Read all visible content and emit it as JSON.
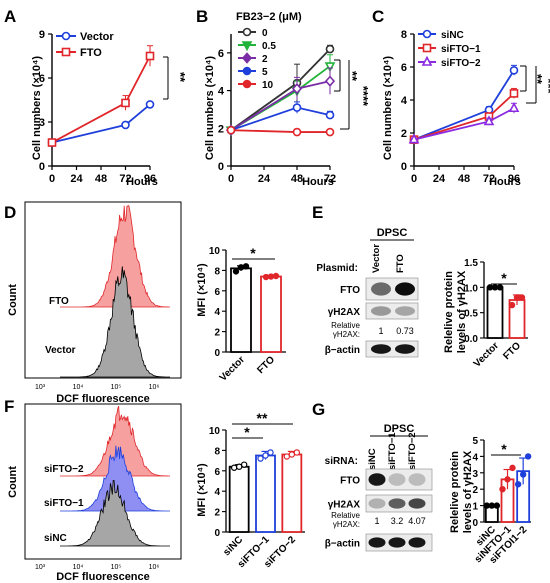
{
  "chart_data": [
    {
      "panel": "A",
      "type": "line",
      "title": "",
      "xlabel": "Hours",
      "ylabel": "Cell numbers (×10⁴)",
      "xticks": [
        "0",
        "24",
        "48",
        "72",
        "96"
      ],
      "yticks": [
        "0",
        "3",
        "6",
        "9"
      ],
      "xlim": [
        0,
        96
      ],
      "ylim": [
        0,
        9
      ],
      "series": [
        {
          "name": "Vector",
          "color": "#1f3fdb",
          "marker": "circle",
          "x": [
            0,
            72,
            96
          ],
          "y": [
            1.6,
            2.8,
            4.2
          ],
          "err": [
            0.1,
            0.15,
            0.15
          ]
        },
        {
          "name": "FTO",
          "color": "#e0262a",
          "marker": "square",
          "x": [
            0,
            72,
            96
          ],
          "y": [
            1.6,
            4.3,
            7.5
          ],
          "err": [
            0.1,
            0.5,
            0.7
          ]
        }
      ],
      "significance": [
        "**"
      ]
    },
    {
      "panel": "B",
      "type": "line",
      "title": "",
      "legend_title": "FB23−2 (μM)",
      "xlabel": "Hours",
      "ylabel": "Cell numbers (×10⁴)",
      "xticks": [
        "0",
        "24",
        "48",
        "72"
      ],
      "yticks": [
        "0",
        "2",
        "4",
        "6"
      ],
      "xlim": [
        0,
        72
      ],
      "ylim": [
        0,
        7
      ],
      "series": [
        {
          "name": "0",
          "color": "#333333",
          "marker": "circle",
          "x": [
            0,
            48,
            72
          ],
          "y": [
            1.9,
            4.4,
            6.2
          ],
          "err": [
            0.1,
            1.0,
            0.2
          ]
        },
        {
          "name": "0.5",
          "color": "#22b33a",
          "marker": "triangle-down",
          "x": [
            0,
            48,
            72
          ],
          "y": [
            1.9,
            4.0,
            5.3
          ],
          "err": [
            0.1,
            0.5,
            0.6
          ]
        },
        {
          "name": "2",
          "color": "#7a2ea6",
          "marker": "diamond",
          "x": [
            0,
            48,
            72
          ],
          "y": [
            1.9,
            4.1,
            4.5
          ],
          "err": [
            0.1,
            0.6,
            0.7
          ]
        },
        {
          "name": "5",
          "color": "#1f3fdb",
          "marker": "circle",
          "x": [
            0,
            48,
            72
          ],
          "y": [
            1.9,
            3.1,
            2.7
          ],
          "err": [
            0.1,
            0.3,
            0.2
          ]
        },
        {
          "name": "10",
          "color": "#e0262a",
          "marker": "circle",
          "x": [
            0,
            48,
            72
          ],
          "y": [
            1.9,
            1.8,
            1.8
          ],
          "err": [
            0.1,
            0.15,
            0.1
          ]
        }
      ],
      "significance": [
        "**",
        "****"
      ]
    },
    {
      "panel": "C",
      "type": "line",
      "title": "",
      "xlabel": "Hours",
      "ylabel": "Cell numbers (×10⁴)",
      "xticks": [
        "0",
        "24",
        "48",
        "72",
        "96"
      ],
      "yticks": [
        "0",
        "2",
        "4",
        "6",
        "8"
      ],
      "xlim": [
        0,
        96
      ],
      "ylim": [
        0,
        8
      ],
      "series": [
        {
          "name": "siNC",
          "color": "#1f3fdb",
          "marker": "circle",
          "x": [
            0,
            72,
            96
          ],
          "y": [
            1.6,
            3.4,
            5.8
          ],
          "err": [
            0.1,
            0.2,
            0.3
          ]
        },
        {
          "name": "siFTO−1",
          "color": "#e0262a",
          "marker": "square",
          "x": [
            0,
            72,
            96
          ],
          "y": [
            1.6,
            3.0,
            4.4
          ],
          "err": [
            0.1,
            0.2,
            0.3
          ]
        },
        {
          "name": "siFTO−2",
          "color": "#8a2be2",
          "marker": "triangle",
          "x": [
            0,
            72,
            96
          ],
          "y": [
            1.6,
            2.7,
            3.5
          ],
          "err": [
            0.1,
            0.2,
            0.3
          ]
        }
      ],
      "significance": [
        "**",
        "***"
      ]
    },
    {
      "panel": "D-histogram",
      "type": "area",
      "title": "",
      "xlabel": "DCF fluorescence",
      "ylabel": "Count",
      "xticks": [
        "10³",
        "10⁴",
        "10⁵",
        "10⁶"
      ],
      "series": [
        {
          "name": "FTO",
          "color": "#f28585"
        },
        {
          "name": "Vector",
          "color": "#999999"
        }
      ]
    },
    {
      "panel": "D-bar",
      "type": "bar",
      "title": "",
      "categories": [
        "Vector",
        "FTO"
      ],
      "colors": [
        "#000000",
        "#e0262a"
      ],
      "values": [
        8.2,
        7.4
      ],
      "err": [
        0.25,
        0.05
      ],
      "points": [
        [
          7.9,
          8.3,
          8.4
        ],
        [
          7.35,
          7.4,
          7.45
        ]
      ],
      "ylabel": "MFI (×10⁴)",
      "yticks": [
        "0",
        "2",
        "4",
        "6",
        "8",
        "10"
      ],
      "ylim": [
        0,
        10
      ],
      "significance": [
        "*"
      ]
    },
    {
      "panel": "E-bar",
      "type": "bar",
      "title": "",
      "categories": [
        "Vector",
        "FTO"
      ],
      "colors": [
        "#000000",
        "#e0262a"
      ],
      "values": [
        1.0,
        0.75
      ],
      "err": [
        0.0,
        0.1
      ],
      "points": [
        [
          1.0,
          1.0,
          1.0
        ],
        [
          0.65,
          0.8,
          0.8
        ]
      ],
      "ylabel": "Relelive protein levels of γH2AX",
      "yticks": [
        "0.0",
        "0.5",
        "1.0",
        "1.5"
      ],
      "ylim": [
        0,
        1.5
      ],
      "significance": [
        "*"
      ]
    },
    {
      "panel": "F-histogram",
      "type": "area",
      "title": "",
      "xlabel": "DCF fluorescence",
      "ylabel": "Count",
      "xticks": [
        "10³",
        "10⁴",
        "10⁵",
        "10⁶"
      ],
      "series": [
        {
          "name": "siFTO−2",
          "color": "#f28585"
        },
        {
          "name": "siFTO−1",
          "color": "#6d6dee"
        },
        {
          "name": "siNC",
          "color": "#999999"
        }
      ]
    },
    {
      "panel": "F-bar",
      "type": "bar",
      "title": "",
      "categories": [
        "siNC",
        "siFTO−1",
        "siFTO−2"
      ],
      "colors": [
        "#000000",
        "#1f3fdb",
        "#e0262a"
      ],
      "values": [
        6.4,
        7.5,
        7.6
      ],
      "err": [
        0.2,
        0.4,
        0.3
      ],
      "points": [
        [
          6.3,
          6.4,
          6.6
        ],
        [
          7.2,
          7.5,
          7.8
        ],
        [
          7.4,
          7.6,
          7.8
        ]
      ],
      "ylabel": "MFI (×10⁴)",
      "yticks": [
        "0",
        "2",
        "4",
        "6",
        "8",
        "10"
      ],
      "ylim": [
        0,
        10
      ],
      "significance": [
        "*",
        "**"
      ]
    },
    {
      "panel": "G-bar",
      "type": "bar",
      "title": "",
      "categories": [
        "siNC",
        "siNFTO−1",
        "siFTOI1−2"
      ],
      "colors": [
        "#000000",
        "#e0262a",
        "#1f3fdb"
      ],
      "values": [
        1.0,
        2.6,
        3.1
      ],
      "err": [
        0.0,
        0.6,
        0.8
      ],
      "points": [
        [
          1.0,
          1.0,
          1.0
        ],
        [
          2.0,
          2.6,
          3.3
        ],
        [
          2.3,
          2.9,
          4.0
        ]
      ],
      "ylabel": "Relelive protein levels of γH2AX",
      "yticks": [
        "0",
        "1",
        "2",
        "3",
        "4",
        "5"
      ],
      "ylim": [
        0,
        5
      ],
      "significance": [
        "*"
      ]
    }
  ],
  "panel_letters": [
    "A",
    "B",
    "C",
    "D",
    "E",
    "F",
    "G"
  ],
  "blots": {
    "E": {
      "header": "DPSC",
      "row_label": "Plasmid:",
      "lanes": [
        "Vector",
        "FTO"
      ],
      "rows": [
        "FTO",
        "γH2AX",
        "β−actin"
      ],
      "relative_label_1": "Relative",
      "relative_label_2": "γH2AX:",
      "relative_values": [
        "1",
        "0.73"
      ]
    },
    "G": {
      "header": "DPSC",
      "row_label": "siRNA:",
      "lanes": [
        "siNC",
        "siFTO−1",
        "siFTO−2"
      ],
      "rows": [
        "FTO",
        "γH2AX",
        "β−actin"
      ],
      "relative_label_1": "Relative",
      "relative_label_2": "γH2AX:",
      "relative_values": [
        "1",
        "3.2",
        "4.07"
      ]
    }
  }
}
